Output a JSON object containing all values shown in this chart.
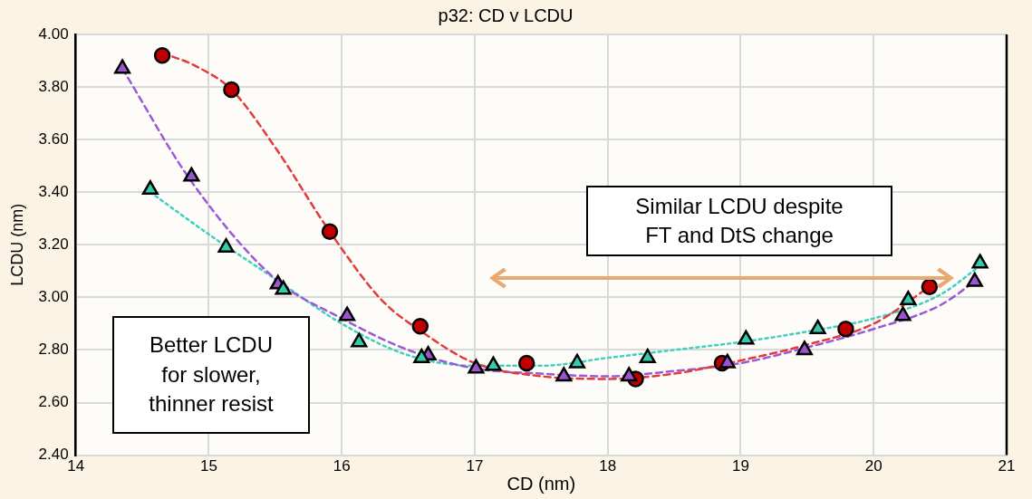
{
  "chart_data": {
    "type": "scatter",
    "title": "p32: CD v LCDU",
    "xlabel": "CD (nm)",
    "ylabel": "LCDU (nm)",
    "annotations": [
      "Similar LCDU despite FT and DtS change",
      "Better LCDU for slower, thinner resist"
    ],
    "xlim": [
      14,
      21
    ],
    "xticks": [
      14,
      15,
      16,
      17,
      18,
      19,
      20,
      21
    ],
    "ylim": [
      2.4,
      4.0
    ],
    "yticks": [
      {
        "value": 2.4,
        "label": "2.40"
      },
      {
        "value": 2.6,
        "label": "2.60"
      },
      {
        "value": 2.8,
        "label": "2.80"
      },
      {
        "value": 3.0,
        "label": "3.00"
      },
      {
        "value": 3.2,
        "label": "3.20"
      },
      {
        "value": 3.4,
        "label": "3.40"
      },
      {
        "value": 3.6,
        "label": "3.60"
      },
      {
        "value": 3.8,
        "label": "3.80"
      },
      {
        "value": 4.0,
        "label": "4.00"
      }
    ],
    "grid": true,
    "legend": false,
    "series": [
      {
        "type": "line",
        "color": "#e03c3c",
        "marker": "none",
        "line_style": "dashed",
        "x": [
          14.65,
          14.9,
          15.17,
          15.5,
          15.91,
          16.3,
          16.6,
          17.0,
          17.5,
          18.0,
          18.5,
          19.0,
          19.5,
          20.0,
          20.42
        ],
        "values": [
          3.93,
          3.88,
          3.79,
          3.57,
          3.25,
          2.99,
          2.87,
          2.75,
          2.7,
          2.69,
          2.71,
          2.76,
          2.82,
          2.9,
          3.04
        ]
      },
      {
        "type": "line",
        "color": "#9b59d6",
        "marker": "none",
        "line_style": "dashed",
        "x": [
          14.35,
          14.87,
          15.5,
          16.0,
          16.5,
          17.0,
          17.5,
          18.0,
          18.5,
          19.0,
          19.5,
          20.0,
          20.5,
          20.76
        ],
        "values": [
          3.87,
          3.44,
          3.07,
          2.92,
          2.8,
          2.73,
          2.71,
          2.7,
          2.72,
          2.75,
          2.81,
          2.88,
          2.97,
          3.06
        ]
      },
      {
        "type": "line",
        "color": "#40d0c0",
        "marker": "none",
        "line_style": "dotted",
        "x": [
          14.56,
          15.0,
          15.5,
          16.0,
          16.5,
          17.0,
          17.5,
          18.0,
          18.5,
          19.0,
          19.5,
          20.0,
          20.5,
          20.8
        ],
        "values": [
          3.4,
          3.24,
          3.07,
          2.9,
          2.78,
          2.74,
          2.74,
          2.77,
          2.8,
          2.83,
          2.87,
          2.92,
          3.01,
          3.12
        ]
      },
      {
        "color": "#c00000",
        "marker": "circle",
        "x": [
          14.65,
          15.17,
          15.91,
          16.59,
          17.39,
          18.21,
          18.86,
          19.79,
          20.42
        ],
        "values": [
          3.92,
          3.79,
          3.25,
          2.89,
          2.75,
          2.69,
          2.75,
          2.88,
          3.04
        ]
      },
      {
        "color": "#9955cc",
        "marker": "triangle",
        "x": [
          14.35,
          14.87,
          15.52,
          16.04,
          16.65,
          17.01,
          17.67,
          18.16,
          18.9,
          19.48,
          20.22,
          20.76
        ],
        "values": [
          3.87,
          3.46,
          3.05,
          2.93,
          2.78,
          2.73,
          2.7,
          2.7,
          2.75,
          2.8,
          2.93,
          3.06
        ]
      },
      {
        "color": "#33ccaa",
        "marker": "triangle",
        "x": [
          14.56,
          15.13,
          15.56,
          16.13,
          16.6,
          17.14,
          17.77,
          18.3,
          19.04,
          19.58,
          20.26,
          20.8
        ],
        "values": [
          3.41,
          3.19,
          3.03,
          2.83,
          2.77,
          2.74,
          2.75,
          2.77,
          2.84,
          2.88,
          2.99,
          3.13
        ]
      }
    ]
  }
}
